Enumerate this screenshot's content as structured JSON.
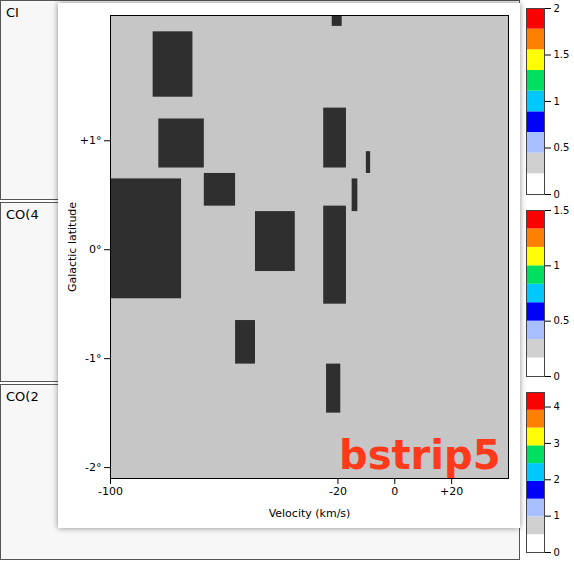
{
  "chart_data": [
    {
      "type": "heatmap",
      "xlabel": "Velocity (km/s)",
      "ylabel": "Galactic latitude",
      "xlim": [
        -100,
        40
      ],
      "xticks": [
        -100,
        -20,
        0,
        {
          "value": 20,
          "label": "+20"
        }
      ],
      "ylim": [
        -2.1,
        2.15
      ],
      "yticks": [
        {
          "value": 1,
          "label": "+1°"
        },
        {
          "value": 0,
          "label": "0°"
        },
        {
          "value": -1,
          "label": "-1°"
        },
        {
          "value": -2,
          "label": "-2°"
        }
      ],
      "emission": [
        {
          "v": [
            -85,
            -71
          ],
          "b": [
            1.4,
            2.0
          ]
        },
        {
          "v": [
            -83,
            -67
          ],
          "b": [
            0.75,
            1.2
          ]
        },
        {
          "v": [
            -100,
            -75
          ],
          "b": [
            -0.45,
            0.65
          ]
        },
        {
          "v": [
            -67,
            -56
          ],
          "b": [
            0.4,
            0.7
          ]
        },
        {
          "v": [
            -56,
            -49
          ],
          "b": [
            -1.05,
            -0.65
          ]
        },
        {
          "v": [
            -49,
            -35
          ],
          "b": [
            -0.2,
            0.35
          ]
        },
        {
          "v": [
            -25,
            -17
          ],
          "b": [
            0.75,
            1.3
          ]
        },
        {
          "v": [
            -25,
            -17
          ],
          "b": [
            -0.5,
            0.4
          ]
        },
        {
          "v": [
            -24,
            -19
          ],
          "b": [
            -1.5,
            -1.05
          ]
        },
        {
          "v": [
            -15,
            -13
          ],
          "b": [
            0.35,
            0.65
          ]
        },
        {
          "v": [
            -10,
            -8.5
          ],
          "b": [
            0.7,
            0.9
          ]
        },
        {
          "v": [
            -22,
            -18.5
          ],
          "b": [
            2.05,
            2.15
          ]
        }
      ],
      "color": "#1a1a1a",
      "annotations": [
        {
          "text": "bstrip5",
          "color": "#ff3a1a"
        }
      ]
    },
    {
      "type": "map",
      "title": "CI"
    },
    {
      "type": "map",
      "title": "CO(4"
    },
    {
      "type": "map",
      "title": "CO(2"
    },
    {
      "type": "colorbar",
      "ylim": [
        0,
        2
      ],
      "yticks": [
        0,
        0.5,
        1,
        1.5,
        2
      ],
      "colors": [
        "#ffffff",
        "#d0d0d0",
        "#a8c0ff",
        "#0000ff",
        "#00c8ff",
        "#00e060",
        "#ffff00",
        "#ff8000",
        "#ff0000"
      ]
    },
    {
      "type": "colorbar",
      "ylim": [
        0,
        1.5
      ],
      "yticks": [
        0,
        0.5,
        1,
        1.5
      ],
      "colors": [
        "#ffffff",
        "#d0d0d0",
        "#a8c0ff",
        "#0000ff",
        "#00c8ff",
        "#00e060",
        "#ffff00",
        "#ff8000",
        "#ff0000"
      ]
    },
    {
      "type": "colorbar",
      "ylim": [
        0,
        4.4
      ],
      "yticks": [
        0,
        1,
        2,
        3,
        4
      ],
      "colors": [
        "#ffffff",
        "#d0d0d0",
        "#a8c0ff",
        "#0000ff",
        "#00c8ff",
        "#00e060",
        "#ffff00",
        "#ff8000",
        "#ff0000"
      ]
    }
  ]
}
